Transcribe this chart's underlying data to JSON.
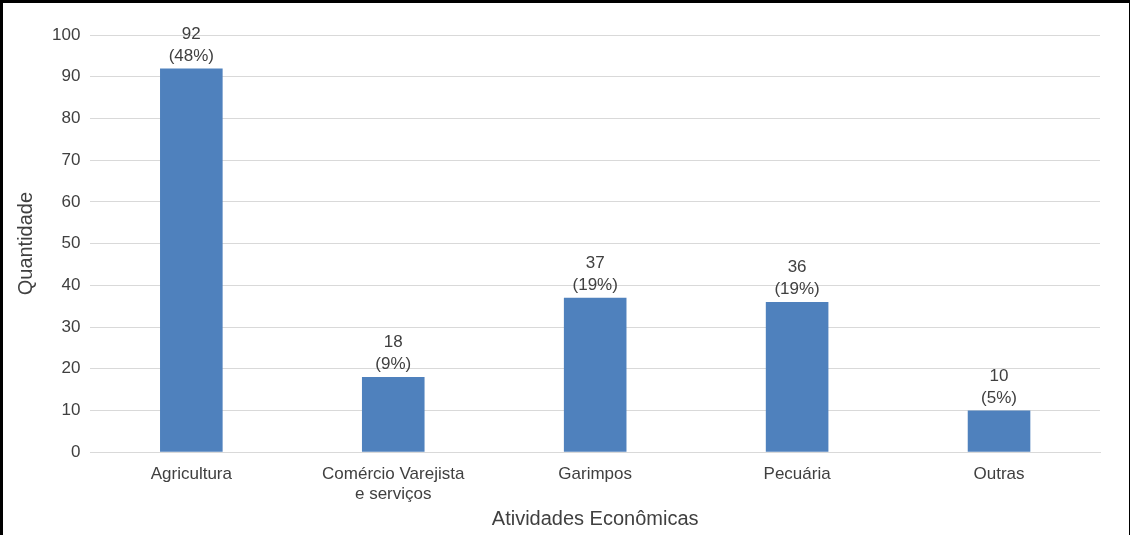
{
  "chart_data": {
    "type": "bar",
    "xlabel": "Atividades Econômicas",
    "ylabel": "Quantidade",
    "categories": [
      "Agricultura",
      "Comércio Varejista e serviços",
      "Garimpos",
      "Pecuária",
      "Outras"
    ],
    "values": [
      92,
      18,
      37,
      36,
      10
    ],
    "value_labels": [
      "92 (48%)",
      "18 (9%)",
      "37 (19%)",
      "36 (19%)",
      "10 (5%)"
    ],
    "color": "#4f81bd",
    "ylim": [
      0,
      100
    ],
    "yticks": [
      0,
      10,
      20,
      30,
      40,
      50,
      60,
      70,
      80,
      90,
      100
    ],
    "grid": "y",
    "legend": false
  }
}
